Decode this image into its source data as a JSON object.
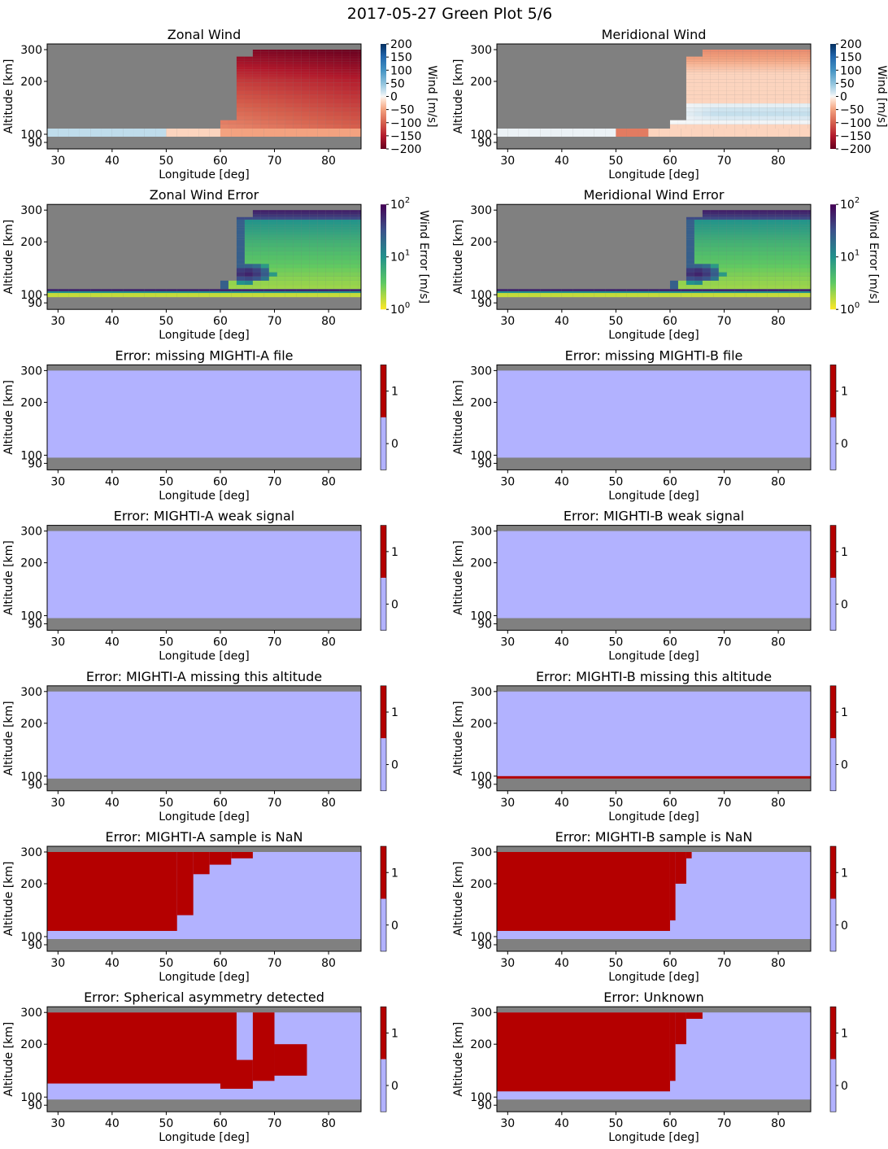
{
  "figure": {
    "title": "2017-05-27 Green Plot 5/6"
  },
  "colors": {
    "masked": "#808080",
    "flag_zero": "#b2b2ff",
    "flag_one": "#b40000",
    "axis": "#000000"
  },
  "axes_common": {
    "xlabel": "Longitude [deg]",
    "ylabel": "Altitude [km]",
    "xlim": [
      28,
      86
    ],
    "xticks": [
      30,
      40,
      50,
      60,
      70,
      80
    ],
    "ylim": [
      88,
      312
    ],
    "yticks": [
      90,
      100,
      200,
      300
    ],
    "y_scale": "nonlinear",
    "valid_altitude_range_km": [
      97,
      300
    ]
  },
  "chart_data": [
    {
      "type": "heatmap",
      "title": "Zonal Wind",
      "colorbar": {
        "label": "Wind [m/s]",
        "cmap": "RdBu",
        "range": [
          -200,
          200
        ],
        "ticks": [
          "200",
          "150",
          "100",
          "50",
          "0",
          "−50",
          "−100",
          "−150",
          "−200"
        ]
      },
      "regions": [
        {
          "alt_km": [
            97,
            110
          ],
          "lon_deg": [
            28,
            86
          ],
          "value_m_s": 10,
          "note": "low-altitude band, near zero; slightly negative toward 55-86 deg"
        },
        {
          "alt_km": [
            110,
            300
          ],
          "lon_deg": [
            60,
            86
          ],
          "value_m_s": -120,
          "note": "strong westward wind, increasing with altitude"
        }
      ]
    },
    {
      "type": "heatmap",
      "title": "Meridional Wind",
      "colorbar": {
        "label": "Wind [m/s]",
        "cmap": "RdBu",
        "range": [
          -200,
          200
        ],
        "ticks": [
          "200",
          "150",
          "100",
          "50",
          "0",
          "−50",
          "−100",
          "−150",
          "−200"
        ]
      },
      "regions": [
        {
          "alt_km": [
            97,
            110
          ],
          "lon_deg": [
            28,
            86
          ],
          "value_m_s": 5,
          "note": "near zero, local minimum about -80 near 50-55 deg"
        },
        {
          "alt_km": [
            110,
            300
          ],
          "lon_deg": [
            60,
            86
          ],
          "value_m_s": -20,
          "note": "weak winds, slightly positive near 130-150 km"
        }
      ]
    },
    {
      "type": "heatmap",
      "title": "Zonal Wind Error",
      "colorbar": {
        "label": "Wind Error [m/s]",
        "cmap": "viridis_r",
        "scale": "log",
        "range": [
          1,
          100
        ],
        "ticks": [
          "10^2",
          "10^1",
          "10^0"
        ]
      },
      "regions": [
        {
          "alt_km": [
            97,
            110
          ],
          "lon_deg": [
            28,
            86
          ],
          "value_m_s": 2
        },
        {
          "alt_km": [
            110,
            300
          ],
          "lon_deg": [
            60,
            86
          ],
          "value_m_s": 5,
          "note": "largest errors (~50) near 140 km at 65 deg and at top edge"
        }
      ]
    },
    {
      "type": "heatmap",
      "title": "Meridional Wind Error",
      "colorbar": {
        "label": "Wind Error [m/s]",
        "cmap": "viridis_r",
        "scale": "log",
        "range": [
          1,
          100
        ],
        "ticks": [
          "10^2",
          "10^1",
          "10^0"
        ]
      },
      "regions": [
        {
          "alt_km": [
            97,
            110
          ],
          "lon_deg": [
            28,
            86
          ],
          "value_m_s": 2
        },
        {
          "alt_km": [
            110,
            300
          ],
          "lon_deg": [
            60,
            86
          ],
          "value_m_s": 5,
          "note": "largest errors (~50) near 140 km at 65 deg and at top edge"
        }
      ]
    },
    {
      "type": "heatmap",
      "title": "Error: missing MIGHTI-A file",
      "colorbar": {
        "ticks": [
          "1",
          "0"
        ]
      },
      "flag_one_regions": []
    },
    {
      "type": "heatmap",
      "title": "Error: missing MIGHTI-B file",
      "colorbar": {
        "ticks": [
          "1",
          "0"
        ]
      },
      "flag_one_regions": []
    },
    {
      "type": "heatmap",
      "title": "Error: MIGHTI-A weak signal",
      "colorbar": {
        "ticks": [
          "1",
          "0"
        ]
      },
      "flag_one_regions": []
    },
    {
      "type": "heatmap",
      "title": "Error: MIGHTI-B weak signal",
      "colorbar": {
        "ticks": [
          "1",
          "0"
        ]
      },
      "flag_one_regions": []
    },
    {
      "type": "heatmap",
      "title": "Error: MIGHTI-A missing this altitude",
      "colorbar": {
        "ticks": [
          "1",
          "0"
        ]
      },
      "flag_one_regions": []
    },
    {
      "type": "heatmap",
      "title": "Error: MIGHTI-B missing this altitude",
      "colorbar": {
        "ticks": [
          "1",
          "0"
        ]
      },
      "flag_one_regions": [
        {
          "alt_km": [
            97,
            100
          ],
          "lon_deg": [
            28,
            86
          ]
        }
      ]
    },
    {
      "type": "heatmap",
      "title": "Error: MIGHTI-A sample is NaN",
      "colorbar": {
        "ticks": [
          "1",
          "0"
        ]
      },
      "flag_one_regions": [
        {
          "alt_km": [
            110,
            300
          ],
          "lon_deg": [
            28,
            52
          ]
        },
        {
          "alt_km": [
            140,
            300
          ],
          "lon_deg": [
            52,
            55
          ]
        },
        {
          "alt_km": [
            230,
            300
          ],
          "lon_deg": [
            55,
            58
          ]
        },
        {
          "alt_km": [
            260,
            300
          ],
          "lon_deg": [
            58,
            62
          ]
        },
        {
          "alt_km": [
            280,
            300
          ],
          "lon_deg": [
            62,
            66
          ]
        }
      ]
    },
    {
      "type": "heatmap",
      "title": "Error: MIGHTI-B sample is NaN",
      "colorbar": {
        "ticks": [
          "1",
          "0"
        ]
      },
      "flag_one_regions": [
        {
          "alt_km": [
            110,
            300
          ],
          "lon_deg": [
            28,
            60
          ]
        },
        {
          "alt_km": [
            130,
            300
          ],
          "lon_deg": [
            60,
            61
          ]
        },
        {
          "alt_km": [
            200,
            300
          ],
          "lon_deg": [
            61,
            63
          ]
        },
        {
          "alt_km": [
            280,
            300
          ],
          "lon_deg": [
            63,
            64
          ]
        }
      ]
    },
    {
      "type": "heatmap",
      "title": "Error: Spherical asymmetry detected",
      "colorbar": {
        "ticks": [
          "1",
          "0"
        ]
      },
      "flag_one_regions": [
        {
          "alt_km": [
            125,
            300
          ],
          "lon_deg": [
            28,
            63
          ]
        },
        {
          "alt_km": [
            115,
            170
          ],
          "lon_deg": [
            60,
            66
          ]
        },
        {
          "alt_km": [
            130,
            300
          ],
          "lon_deg": [
            66,
            70
          ]
        },
        {
          "alt_km": [
            140,
            200
          ],
          "lon_deg": [
            70,
            76
          ]
        }
      ]
    },
    {
      "type": "heatmap",
      "title": "Error: Unknown",
      "colorbar": {
        "ticks": [
          "1",
          "0"
        ]
      },
      "flag_one_regions": [
        {
          "alt_km": [
            110,
            300
          ],
          "lon_deg": [
            28,
            60
          ]
        },
        {
          "alt_km": [
            130,
            300
          ],
          "lon_deg": [
            60,
            61
          ]
        },
        {
          "alt_km": [
            200,
            300
          ],
          "lon_deg": [
            61,
            63
          ]
        },
        {
          "alt_km": [
            280,
            300
          ],
          "lon_deg": [
            63,
            66
          ]
        }
      ]
    }
  ]
}
